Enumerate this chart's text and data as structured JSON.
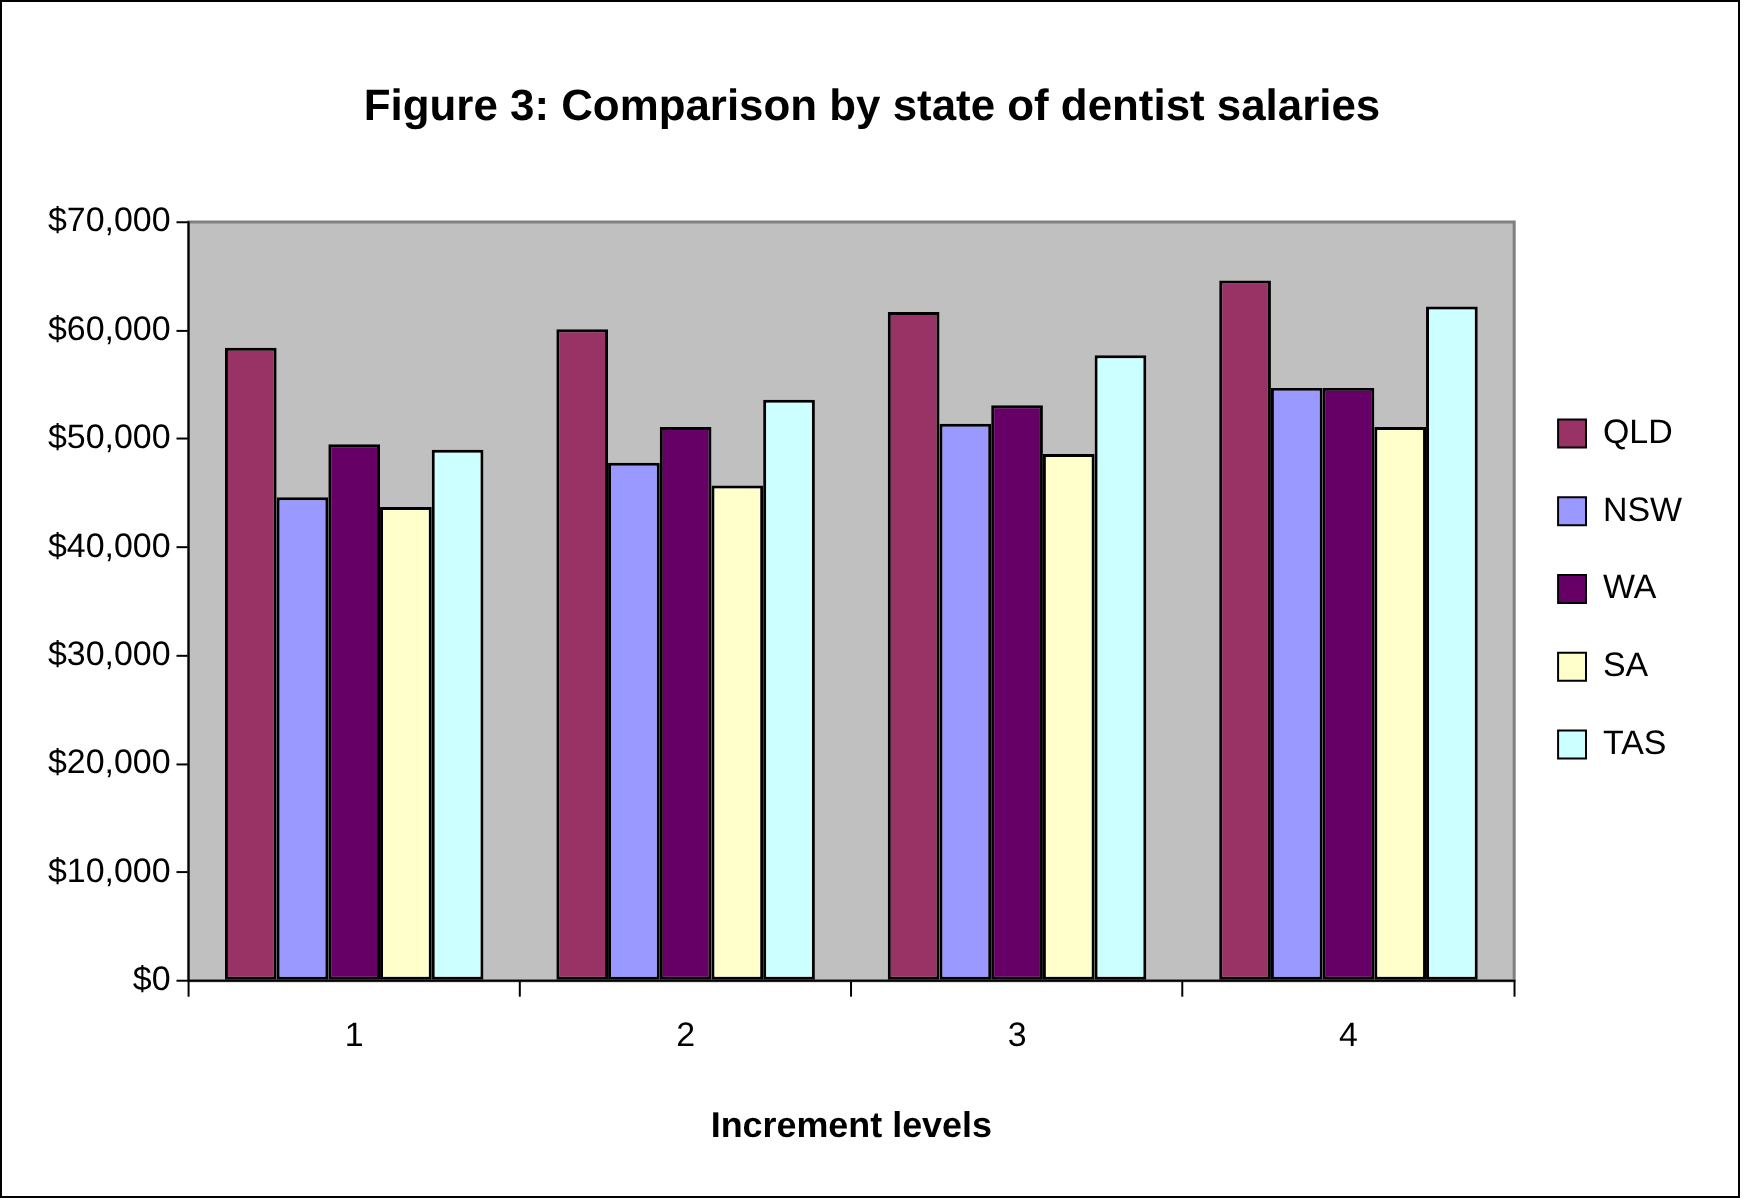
{
  "chart_data": {
    "type": "bar",
    "title": "Figure 3: Comparison by state of dentist salaries",
    "xlabel": "Increment levels",
    "categories": [
      "1",
      "2",
      "3",
      "4"
    ],
    "series": [
      {
        "name": "QLD",
        "color": "#993366",
        "values": [
          58400,
          60100,
          61700,
          64600
        ]
      },
      {
        "name": "NSW",
        "color": "#9999ff",
        "values": [
          44600,
          47800,
          51400,
          54700
        ]
      },
      {
        "name": "WA",
        "color": "#660066",
        "values": [
          49500,
          51100,
          53100,
          54700
        ]
      },
      {
        "name": "SA",
        "color": "#ffffcc",
        "values": [
          43700,
          45700,
          48600,
          51100
        ]
      },
      {
        "name": "TAS",
        "color": "#ccffff",
        "values": [
          49000,
          53600,
          57700,
          62200
        ]
      }
    ],
    "ylim": [
      0,
      70000
    ],
    "yticks": [
      {
        "value": 0,
        "label": "$0"
      },
      {
        "value": 10000,
        "label": "$10,000"
      },
      {
        "value": 20000,
        "label": "$20,000"
      },
      {
        "value": 30000,
        "label": "$30,000"
      },
      {
        "value": 40000,
        "label": "$40,000"
      },
      {
        "value": 50000,
        "label": "$50,000"
      },
      {
        "value": 60000,
        "label": "$60,000"
      },
      {
        "value": 70000,
        "label": "$70,000"
      }
    ],
    "grid": false,
    "legend": "right"
  }
}
